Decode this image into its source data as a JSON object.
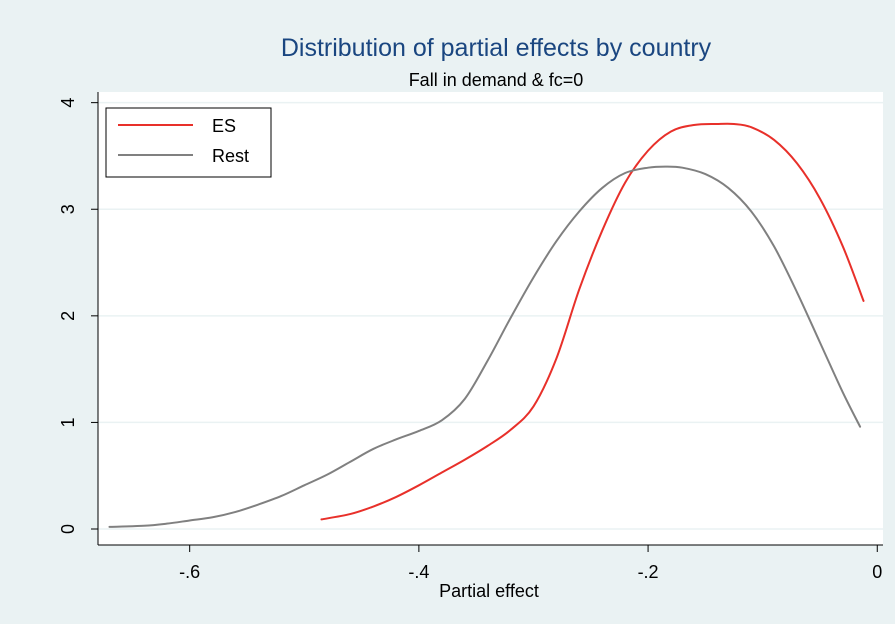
{
  "chart_data": {
    "type": "line",
    "title": "Distribution of partial effects by country",
    "subtitle": "Fall in demand & fc=0",
    "xlabel": "Partial effect",
    "ylabel": "",
    "xlim": [
      -0.68,
      0.005
    ],
    "ylim": [
      -0.15,
      4.1
    ],
    "x_ticks": [
      -0.6,
      -0.4,
      -0.2,
      0
    ],
    "x_tick_labels": [
      "-.6",
      "-.4",
      "-.2",
      "0"
    ],
    "y_ticks": [
      0,
      1,
      2,
      3,
      4
    ],
    "y_tick_labels": [
      "0",
      "1",
      "2",
      "3",
      "4"
    ],
    "grid": true,
    "legend_position": "top-left",
    "colors": {
      "background": "#eaf2f3",
      "plot_area": "#ffffff",
      "grid": "#eaf2f3",
      "title": "#1a4680",
      "text": "#000000"
    },
    "series": [
      {
        "name": "ES",
        "color": "#e8302a",
        "x": [
          -0.485,
          -0.46,
          -0.44,
          -0.42,
          -0.4,
          -0.38,
          -0.36,
          -0.34,
          -0.32,
          -0.3,
          -0.28,
          -0.26,
          -0.24,
          -0.22,
          -0.2,
          -0.18,
          -0.16,
          -0.14,
          -0.125,
          -0.11,
          -0.09,
          -0.07,
          -0.05,
          -0.03,
          -0.012
        ],
        "y": [
          0.09,
          0.14,
          0.21,
          0.3,
          0.41,
          0.53,
          0.65,
          0.78,
          0.93,
          1.15,
          1.6,
          2.25,
          2.8,
          3.25,
          3.55,
          3.73,
          3.79,
          3.8,
          3.8,
          3.77,
          3.65,
          3.43,
          3.1,
          2.65,
          2.14
        ]
      },
      {
        "name": "Rest",
        "color": "#808080",
        "x": [
          -0.67,
          -0.64,
          -0.62,
          -0.6,
          -0.58,
          -0.56,
          -0.54,
          -0.52,
          -0.5,
          -0.48,
          -0.46,
          -0.44,
          -0.42,
          -0.4,
          -0.38,
          -0.36,
          -0.34,
          -0.32,
          -0.3,
          -0.28,
          -0.26,
          -0.24,
          -0.22,
          -0.2,
          -0.185,
          -0.17,
          -0.15,
          -0.13,
          -0.11,
          -0.09,
          -0.07,
          -0.05,
          -0.03,
          -0.015
        ],
        "y": [
          0.02,
          0.03,
          0.05,
          0.08,
          0.11,
          0.16,
          0.23,
          0.31,
          0.41,
          0.51,
          0.63,
          0.75,
          0.84,
          0.92,
          1.02,
          1.22,
          1.58,
          1.98,
          2.36,
          2.7,
          2.98,
          3.2,
          3.34,
          3.39,
          3.4,
          3.39,
          3.33,
          3.2,
          2.98,
          2.65,
          2.22,
          1.75,
          1.28,
          0.96
        ]
      }
    ]
  }
}
